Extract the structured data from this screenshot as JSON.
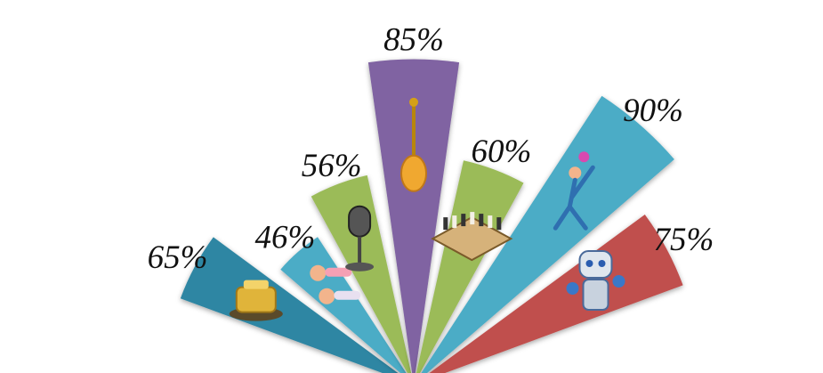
{
  "chart_data": {
    "type": "pie",
    "layout": "half-pie radial (exploded wedges of varying length)",
    "categories": [
      "Trophy",
      "Swimmers",
      "Microphone",
      "Spoon",
      "Chess",
      "Volleyball",
      "Robot"
    ],
    "values": [
      65,
      46,
      56,
      85,
      60,
      90,
      75
    ],
    "labels": [
      "65%",
      "46%",
      "56%",
      "85%",
      "60%",
      "90%",
      "75%"
    ],
    "colors": [
      "#2E86A3",
      "#4BACC6",
      "#9BBB59",
      "#8064A2",
      "#9BBB59",
      "#4BACC6",
      "#C0504D"
    ],
    "icons": [
      "trophy-icon",
      "swimmers-icon",
      "microphone-icon",
      "spoon-icon",
      "chess-icon",
      "volleyball-player-icon",
      "robot-icon"
    ],
    "grid": false,
    "legend": "none"
  }
}
